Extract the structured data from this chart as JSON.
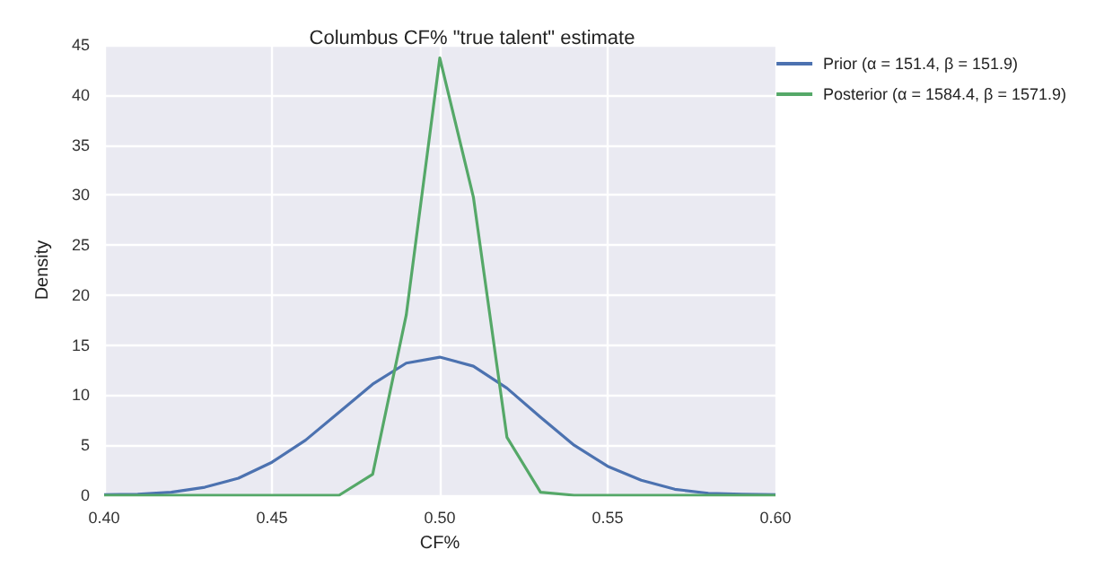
{
  "chart_data": {
    "type": "line",
    "title": "Columbus CF% \"true talent\" estimate",
    "xlabel": "CF%",
    "ylabel": "Density",
    "x": [
      0.4,
      0.41,
      0.42,
      0.43,
      0.44,
      0.45,
      0.46,
      0.47,
      0.48,
      0.49,
      0.5,
      0.51,
      0.52,
      0.53,
      0.54,
      0.55,
      0.56,
      0.57,
      0.58,
      0.59,
      0.6
    ],
    "series": [
      {
        "name": "Prior (α = 151.4, β = 151.9)",
        "color": "#4c72b0",
        "values": [
          0.05,
          0.1,
          0.3,
          0.8,
          1.7,
          3.3,
          5.5,
          8.3,
          11.1,
          13.2,
          13.8,
          12.9,
          10.7,
          7.8,
          5.0,
          2.9,
          1.5,
          0.6,
          0.2,
          0.1,
          0.05
        ]
      },
      {
        "name": "Posterior (α = 1584.4, β = 1571.9)",
        "color": "#55a868",
        "values": [
          0,
          0,
          0,
          0,
          0,
          0,
          0,
          0,
          2.1,
          18,
          43.7,
          29.8,
          5.8,
          0.3,
          0,
          0,
          0,
          0,
          0,
          0,
          0
        ]
      }
    ],
    "xlim": [
      0.4,
      0.6
    ],
    "xticks": [
      {
        "value": 0.4,
        "label": "0.40"
      },
      {
        "value": 0.45,
        "label": "0.45"
      },
      {
        "value": 0.5,
        "label": "0.50"
      },
      {
        "value": 0.55,
        "label": "0.55"
      },
      {
        "value": 0.6,
        "label": "0.60"
      }
    ],
    "ylim": [
      0,
      45
    ],
    "yticks": [
      0,
      5,
      10,
      15,
      20,
      25,
      30,
      35,
      40,
      45
    ],
    "grid": true,
    "legend": "top right",
    "marker": "none",
    "line_style": "solid"
  }
}
